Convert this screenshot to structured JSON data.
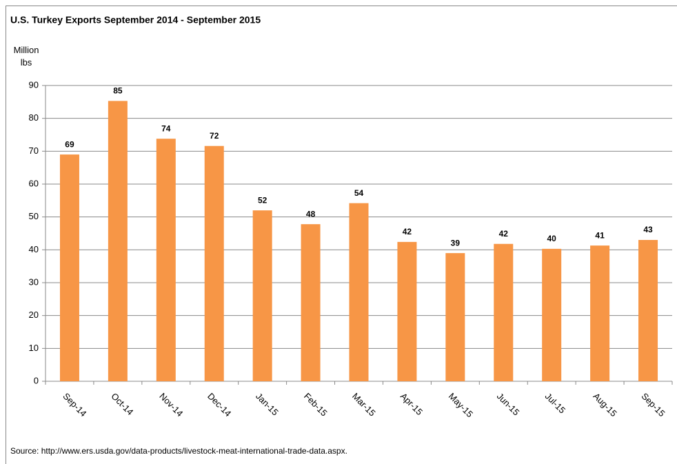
{
  "chart_data": {
    "type": "bar",
    "title": "U.S. Turkey Exports September 2014 - September 2015",
    "y_label": "Million lbs",
    "source": "Source: http://www.ers.usda.gov/data-products/livestock-meat-international-trade-data.aspx.",
    "categories": [
      "Sep-14",
      "Oct-14",
      "Nov-14",
      "Dec-14",
      "Jan-15",
      "Feb-15",
      "Mar-15",
      "Apr-15",
      "May-15",
      "Jun-15",
      "Jul-15",
      "Aug-15",
      "Sep-15"
    ],
    "values": [
      69,
      85.3,
      73.8,
      71.6,
      52,
      47.8,
      54.2,
      42.4,
      39,
      41.8,
      40.3,
      41.3,
      43
    ],
    "value_labels": [
      "69",
      "85",
      "74",
      "72",
      "52",
      "48",
      "54",
      "42",
      "39",
      "42",
      "40",
      "41",
      "43"
    ],
    "color": "#f79646",
    "ylim": [
      0,
      90
    ],
    "yticks": [
      0,
      10,
      20,
      30,
      40,
      50,
      60,
      70,
      80,
      90
    ],
    "grid": true
  }
}
